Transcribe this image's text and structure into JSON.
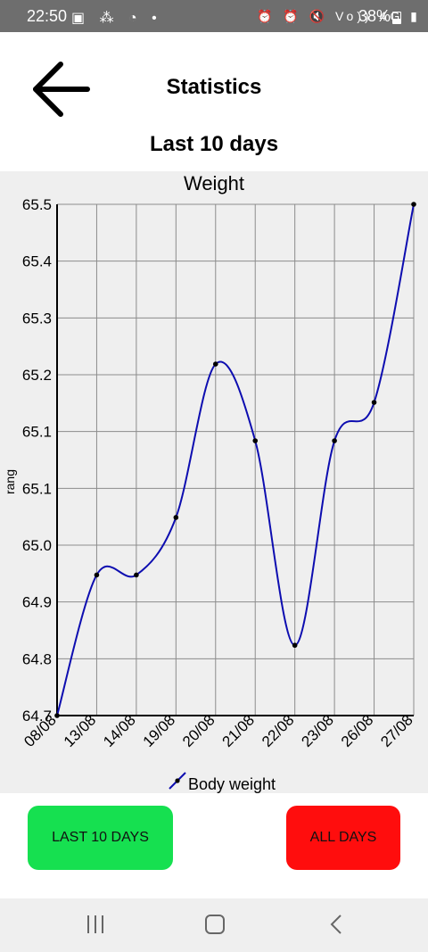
{
  "status_bar": {
    "time": "22:50",
    "left_icons": "▣ ⁂ ◔ •",
    "right_icons": "⏰ ⏰ 🔇 Vo)) 4G ▮",
    "battery": "38%"
  },
  "header": {
    "title": "Statistics",
    "back_icon": "arrow-left-icon"
  },
  "subtitle": "Last 10 days",
  "chart_data": {
    "type": "line",
    "title": "Weight",
    "ylabel": "rang",
    "xlabel": "",
    "categories": [
      "08/08",
      "13/08",
      "14/08",
      "19/08",
      "20/08",
      "21/08",
      "22/08",
      "23/08",
      "26/08",
      "27/08"
    ],
    "series": [
      {
        "name": "Body weight",
        "values": [
          64.7,
          64.92,
          64.92,
          65.01,
          65.25,
          65.13,
          64.81,
          65.13,
          65.19,
          65.5
        ],
        "color": "#0d0db0"
      }
    ],
    "yticks": [
      "64.7",
      "64.8",
      "64.9",
      "65.0",
      "65.1",
      "65.1",
      "65.2",
      "65.3",
      "65.4",
      "65.5"
    ],
    "ylim": [
      64.7,
      65.5
    ],
    "grid": true,
    "legend": "bottom-center"
  },
  "buttons": {
    "last10": "LAST 10 DAYS",
    "all": "ALL DAYS"
  },
  "colors": {
    "last10_bg": "#16e050",
    "all_bg": "#ff0d0d",
    "line": "#0d0db0",
    "chart_bg": "#efefef"
  }
}
